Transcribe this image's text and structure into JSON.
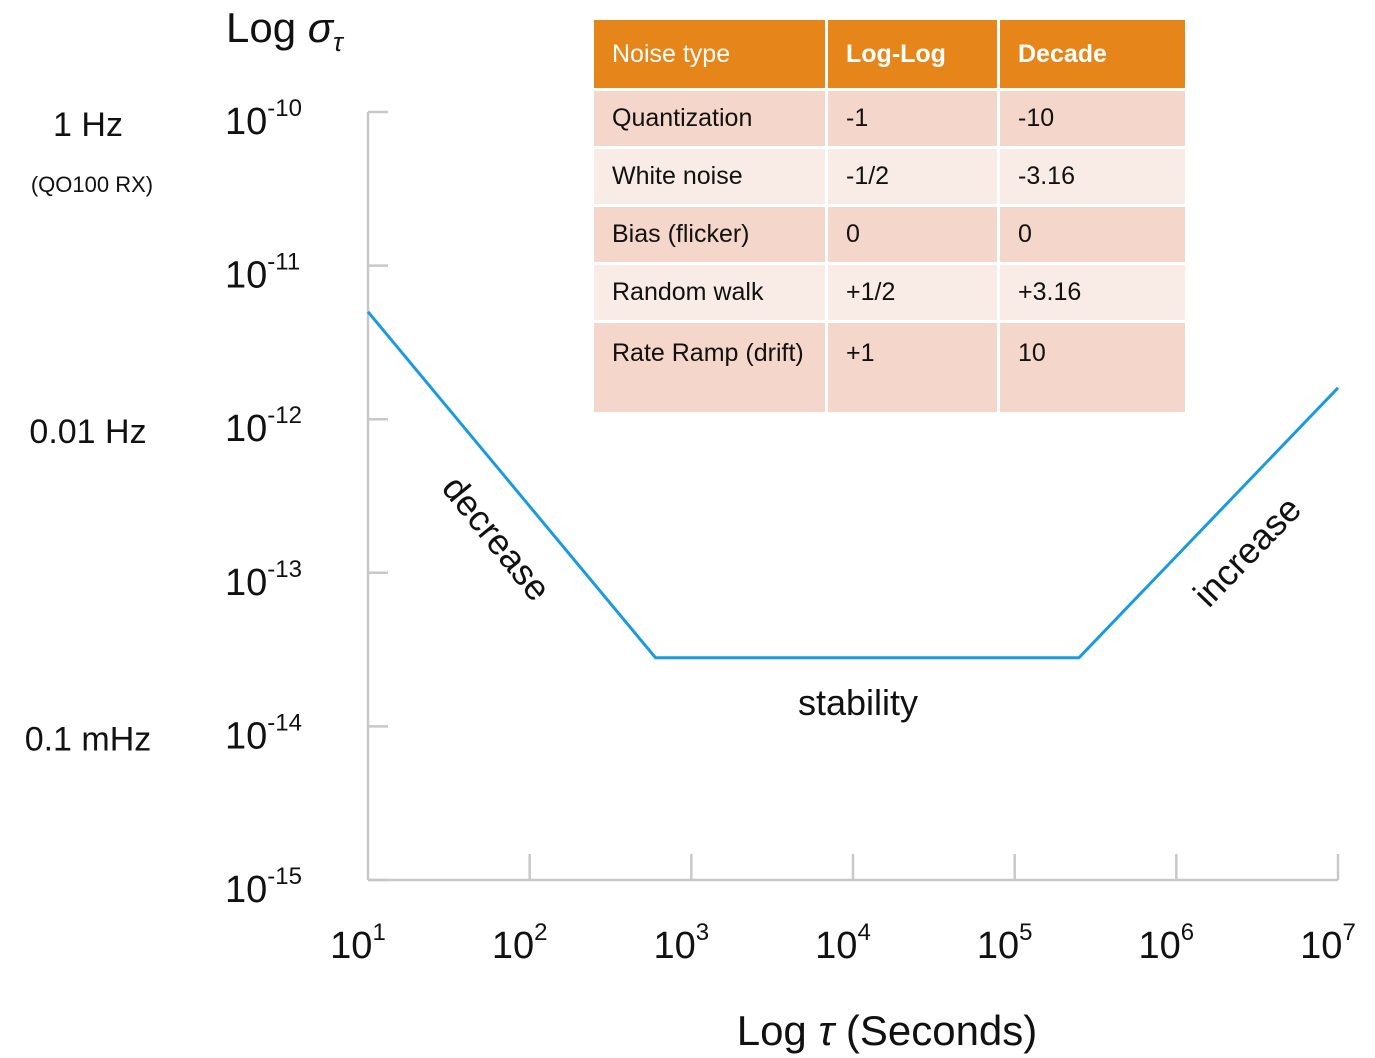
{
  "chart_data": {
    "type": "line",
    "title": "Log στ",
    "xlabel": "Log τ (Seconds)",
    "x_scale": "log",
    "y_scale": "log",
    "xlim": [
      10,
      10000000
    ],
    "ylim": [
      1e-15,
      1e-10
    ],
    "x_ticks": [
      {
        "base": "10",
        "exp": "1"
      },
      {
        "base": "10",
        "exp": "2"
      },
      {
        "base": "10",
        "exp": "3"
      },
      {
        "base": "10",
        "exp": "4"
      },
      {
        "base": "10",
        "exp": "5"
      },
      {
        "base": "10",
        "exp": "6"
      },
      {
        "base": "10",
        "exp": "7"
      }
    ],
    "y_ticks": [
      {
        "base": "10",
        "exp": "-10"
      },
      {
        "base": "10",
        "exp": "-11"
      },
      {
        "base": "10",
        "exp": "-12"
      },
      {
        "base": "10",
        "exp": "-13"
      },
      {
        "base": "10",
        "exp": "-14"
      },
      {
        "base": "10",
        "exp": "-15"
      }
    ],
    "side_labels": [
      {
        "text": "1 Hz",
        "y_exp": -10,
        "sub": "(QO100 RX)"
      },
      {
        "text": "0.01 Hz",
        "y_exp": -12
      },
      {
        "text": "0.1 mHz",
        "y_exp": -14
      }
    ],
    "series": [
      {
        "color": "#1a9be0",
        "x": [
          10,
          600,
          250000,
          10000000
        ],
        "y": [
          5e-12,
          2.8e-14,
          2.8e-14,
          1.6e-12
        ]
      }
    ],
    "annotations": [
      {
        "text": "decrease"
      },
      {
        "text": "stability"
      },
      {
        "text": "increase"
      }
    ],
    "grid": false,
    "axis_color": "#c8c8c8"
  },
  "table": {
    "header": [
      "Noise type",
      "Log-Log",
      "Decade"
    ],
    "rows": [
      [
        "Quantization",
        "-1",
        "-10"
      ],
      [
        "White noise",
        "-1/2",
        "-3.16"
      ],
      [
        "Bias (flicker)",
        "0",
        "0"
      ],
      [
        "Random walk",
        "+1/2",
        "+3.16"
      ],
      [
        "Rate Ramp (drift)",
        "+1",
        "10"
      ]
    ],
    "header_color": "#e6861a"
  }
}
